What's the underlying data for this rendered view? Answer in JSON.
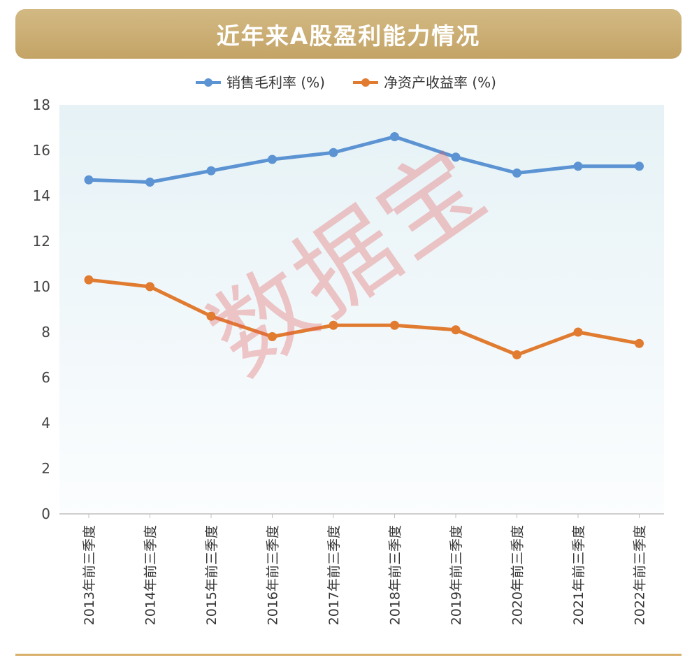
{
  "header": {
    "title": "近年来A股盈利能力情况"
  },
  "watermark": "数据宝",
  "colors": {
    "series1": "#5b93d3",
    "series2": "#e07b30",
    "banner": "#c9ab6e"
  },
  "chart_data": {
    "type": "line",
    "title": "近年来A股盈利能力情况",
    "xlabel": "",
    "ylabel": "",
    "ylim": [
      0,
      18
    ],
    "yticks": [
      "0",
      "2",
      "4",
      "6",
      "8",
      "10",
      "12",
      "14",
      "16",
      "18"
    ],
    "categories": [
      "2013年前三季度",
      "2014年前三季度",
      "2015年前三季度",
      "2016年前三季度",
      "2017年前三季度",
      "2018年前三季度",
      "2019年前三季度",
      "2020年前三季度",
      "2021年前三季度",
      "2022年前三季度"
    ],
    "series": [
      {
        "name": "销售毛利率 (%)",
        "values": [
          14.7,
          14.6,
          15.1,
          15.6,
          15.9,
          16.6,
          15.7,
          15.0,
          15.3,
          15.3
        ]
      },
      {
        "name": "净资产收益率 (%)",
        "values": [
          10.3,
          10.0,
          8.7,
          7.8,
          8.3,
          8.3,
          8.1,
          7.0,
          8.0,
          7.5
        ]
      }
    ],
    "legend": "top",
    "grid": false
  }
}
